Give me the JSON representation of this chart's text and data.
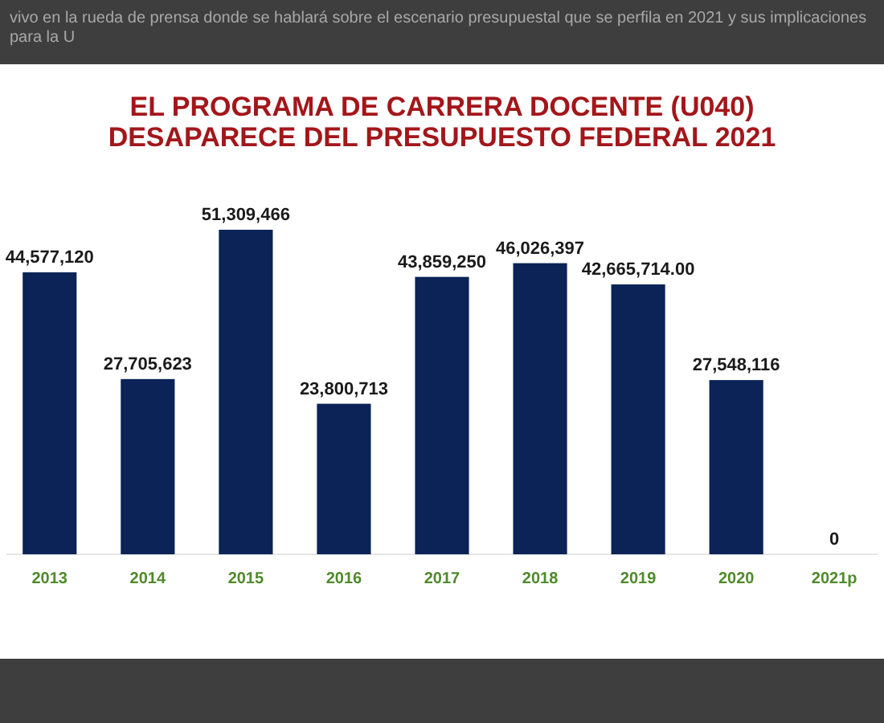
{
  "chart_data": {
    "type": "bar",
    "title": "EL PROGRAMA DE CARRERA DOCENTE (U040)\nDESAPARECE DEL PRESUPUESTO FEDERAL 2021",
    "categories": [
      "2013",
      "2014",
      "2015",
      "2016",
      "2017",
      "2018",
      "2019",
      "2020",
      "2021p"
    ],
    "values": [
      44577120,
      27705623,
      51309466,
      23800713,
      43859250,
      46026397,
      42665714,
      27548116,
      0
    ],
    "color": "#0b2356",
    "value_labels": [
      "44,577,120",
      "27,705,623",
      "51,309,466",
      "23,800,713",
      "43,859,250",
      "46,026,397",
      "42,665,714.00",
      "27,548,116",
      "0"
    ],
    "annotations": [
      "vivo en la rueda de prensa donde se hablará sobre el escenario presupuestal que se perfila en 2021 y sus implicaciones para la U"
    ]
  }
}
